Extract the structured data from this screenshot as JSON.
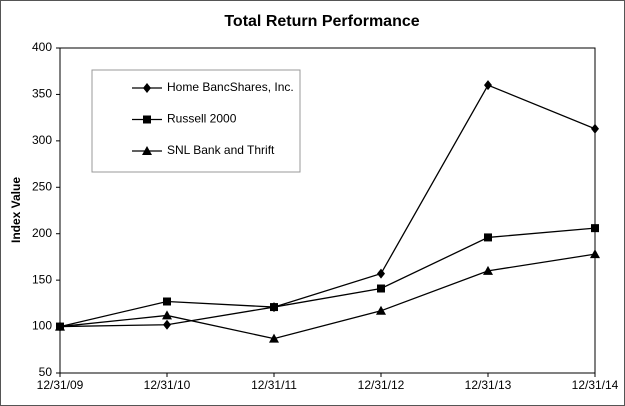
{
  "chart_data": {
    "type": "line",
    "title": "Total Return Performance",
    "y_label": "Index Value",
    "categories": [
      "12/31/09",
      "12/31/10",
      "12/31/11",
      "12/31/12",
      "12/31/13",
      "12/31/14"
    ],
    "series": [
      {
        "name": "Home BancShares, Inc.",
        "color": "#000000",
        "marker": "diamond",
        "values": [
          100,
          102,
          121,
          157,
          360,
          313
        ]
      },
      {
        "name": "Russell 2000",
        "color": "#000000",
        "marker": "square",
        "values": [
          100,
          127,
          121,
          141,
          196,
          206
        ]
      },
      {
        "name": "SNL Bank and Thrift",
        "color": "#000000",
        "marker": "triangle",
        "values": [
          100,
          112,
          87,
          117,
          160,
          178
        ]
      }
    ],
    "ylim": [
      50,
      400
    ],
    "yticks": [
      50,
      100,
      150,
      200,
      250,
      300,
      350,
      400
    ],
    "grid": false,
    "legend": "upper left"
  }
}
